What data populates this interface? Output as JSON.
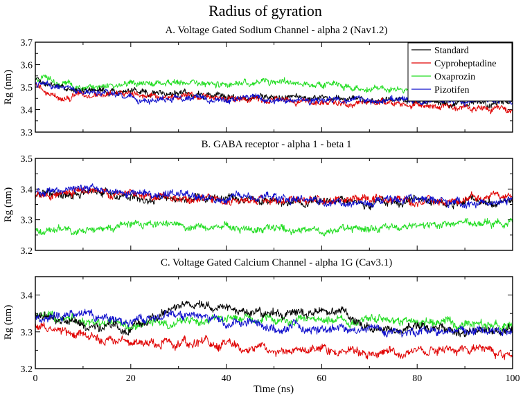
{
  "figure_title": "Radius of gyration",
  "colors": {
    "Standard": "#000000",
    "Cyproheptadine": "#e00000",
    "Oxaprozin": "#22dd22",
    "Pizotifen": "#1010cc"
  },
  "legend": [
    "Standard",
    "Cyproheptadine",
    "Oxaprozin",
    "Pizotifen"
  ],
  "chart_data": [
    {
      "type": "line",
      "title": "A. Voltage Gated Sodium Channel - alpha 2 (Nav1.2)",
      "xlabel": "",
      "ylabel": "Rg (nm)",
      "xlim": [
        0,
        100
      ],
      "ylim": [
        3.3,
        3.7
      ],
      "yticks": [
        "3.3",
        "3.4",
        "3.5",
        "3.6",
        "3.7"
      ],
      "xticks": [],
      "legend_position": "top-right",
      "series": [
        {
          "name": "Standard",
          "x": [
            0,
            5,
            10,
            20,
            30,
            40,
            50,
            60,
            70,
            80,
            90,
            100
          ],
          "values": [
            3.53,
            3.5,
            3.49,
            3.48,
            3.47,
            3.46,
            3.46,
            3.45,
            3.44,
            3.43,
            3.43,
            3.43
          ],
          "noise": 0.012
        },
        {
          "name": "Cyproheptadine",
          "x": [
            0,
            5,
            10,
            20,
            30,
            40,
            50,
            60,
            70,
            80,
            90,
            100
          ],
          "values": [
            3.52,
            3.44,
            3.47,
            3.47,
            3.46,
            3.45,
            3.44,
            3.43,
            3.43,
            3.42,
            3.41,
            3.4
          ],
          "noise": 0.012
        },
        {
          "name": "Oxaprozin",
          "x": [
            0,
            5,
            10,
            20,
            30,
            40,
            50,
            60,
            70,
            80,
            90,
            100
          ],
          "values": [
            3.54,
            3.51,
            3.5,
            3.51,
            3.52,
            3.51,
            3.52,
            3.51,
            3.5,
            3.49,
            3.48,
            3.47
          ],
          "noise": 0.012
        },
        {
          "name": "Pizotifen",
          "x": [
            0,
            5,
            10,
            20,
            25,
            30,
            40,
            50,
            60,
            70,
            80,
            90,
            100
          ],
          "values": [
            3.52,
            3.5,
            3.48,
            3.46,
            3.43,
            3.45,
            3.45,
            3.45,
            3.44,
            3.44,
            3.44,
            3.44,
            3.44
          ],
          "noise": 0.012
        }
      ]
    },
    {
      "type": "line",
      "title": "B. GABA receptor - alpha 1 - beta 1",
      "xlabel": "",
      "ylabel": "Rg (nm)",
      "xlim": [
        0,
        100
      ],
      "ylim": [
        3.2,
        3.5
      ],
      "yticks": [
        "3.2",
        "3.3",
        "3.4",
        "3.5"
      ],
      "xticks": [],
      "series": [
        {
          "name": "Standard",
          "x": [
            0,
            10,
            20,
            30,
            40,
            50,
            60,
            70,
            80,
            90,
            100
          ],
          "values": [
            3.38,
            3.39,
            3.38,
            3.37,
            3.37,
            3.36,
            3.36,
            3.36,
            3.36,
            3.35,
            3.36
          ],
          "noise": 0.011
        },
        {
          "name": "Cyproheptadine",
          "x": [
            0,
            10,
            20,
            30,
            40,
            50,
            60,
            70,
            80,
            90,
            100
          ],
          "values": [
            3.38,
            3.39,
            3.38,
            3.37,
            3.36,
            3.36,
            3.36,
            3.37,
            3.36,
            3.37,
            3.37
          ],
          "noise": 0.011
        },
        {
          "name": "Oxaprozin",
          "x": [
            0,
            10,
            20,
            30,
            40,
            50,
            60,
            70,
            80,
            90,
            100
          ],
          "values": [
            3.27,
            3.27,
            3.28,
            3.28,
            3.27,
            3.27,
            3.27,
            3.27,
            3.28,
            3.29,
            3.29
          ],
          "noise": 0.01
        },
        {
          "name": "Pizotifen",
          "x": [
            0,
            10,
            20,
            30,
            40,
            50,
            60,
            70,
            80,
            90,
            100
          ],
          "values": [
            3.39,
            3.4,
            3.39,
            3.38,
            3.37,
            3.37,
            3.36,
            3.36,
            3.36,
            3.36,
            3.36
          ],
          "noise": 0.011
        }
      ]
    },
    {
      "type": "line",
      "title": "C. Voltage Gated Calcium Channel - alpha 1G (Cav3.1)",
      "xlabel": "Time (ns)",
      "ylabel": "Rg (nm)",
      "xlim": [
        0,
        100
      ],
      "ylim": [
        3.2,
        3.45
      ],
      "yticks": [
        "3.2",
        "3.3",
        "3.4"
      ],
      "xticks": [
        "0",
        "20",
        "40",
        "60",
        "80",
        "100"
      ],
      "series": [
        {
          "name": "Standard",
          "x": [
            0,
            10,
            20,
            25,
            30,
            40,
            50,
            60,
            65,
            70,
            80,
            90,
            100
          ],
          "values": [
            3.35,
            3.32,
            3.31,
            3.34,
            3.38,
            3.36,
            3.35,
            3.35,
            3.35,
            3.31,
            3.31,
            3.3,
            3.31
          ],
          "noise": 0.01
        },
        {
          "name": "Cyproheptadine",
          "x": [
            0,
            10,
            20,
            30,
            40,
            50,
            60,
            70,
            80,
            90,
            100
          ],
          "values": [
            3.32,
            3.29,
            3.27,
            3.27,
            3.27,
            3.25,
            3.25,
            3.24,
            3.25,
            3.25,
            3.24
          ],
          "noise": 0.01
        },
        {
          "name": "Oxaprozin",
          "x": [
            0,
            10,
            20,
            30,
            40,
            50,
            60,
            70,
            80,
            90,
            100
          ],
          "values": [
            3.35,
            3.33,
            3.31,
            3.33,
            3.34,
            3.33,
            3.33,
            3.33,
            3.33,
            3.32,
            3.32
          ],
          "noise": 0.01
        },
        {
          "name": "Pizotifen",
          "x": [
            0,
            10,
            20,
            30,
            40,
            50,
            60,
            70,
            80,
            90,
            100
          ],
          "values": [
            3.34,
            3.34,
            3.33,
            3.35,
            3.33,
            3.31,
            3.31,
            3.31,
            3.3,
            3.3,
            3.3
          ],
          "noise": 0.01
        }
      ]
    }
  ]
}
